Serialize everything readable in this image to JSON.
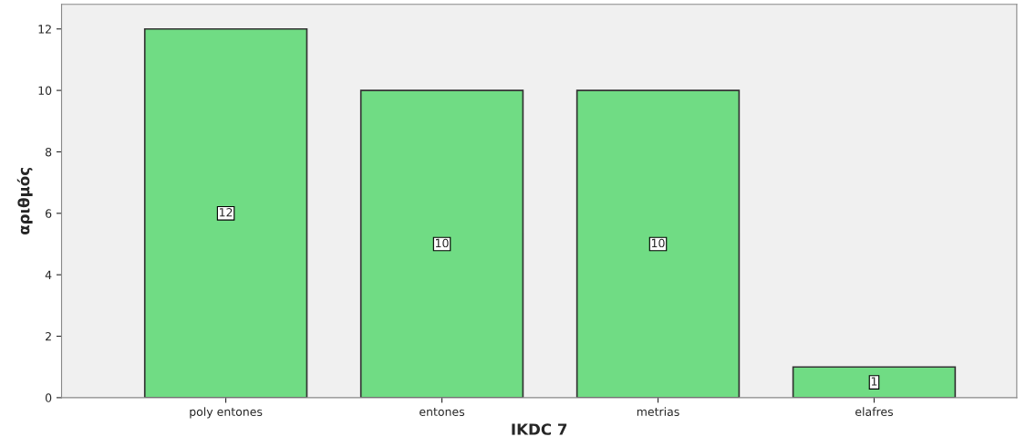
{
  "chart_data": {
    "type": "bar",
    "xlabel": "IKDC 7",
    "ylabel": "αριθμός",
    "categories": [
      "poly entones",
      "entones",
      "metrias",
      "elafres"
    ],
    "values": [
      12,
      10,
      10,
      1
    ],
    "color": "#70dc84",
    "ylim": [
      0,
      12.8
    ],
    "yticks": [
      0,
      2,
      4,
      6,
      8,
      10,
      12
    ],
    "grid": false,
    "data_labels": true
  }
}
